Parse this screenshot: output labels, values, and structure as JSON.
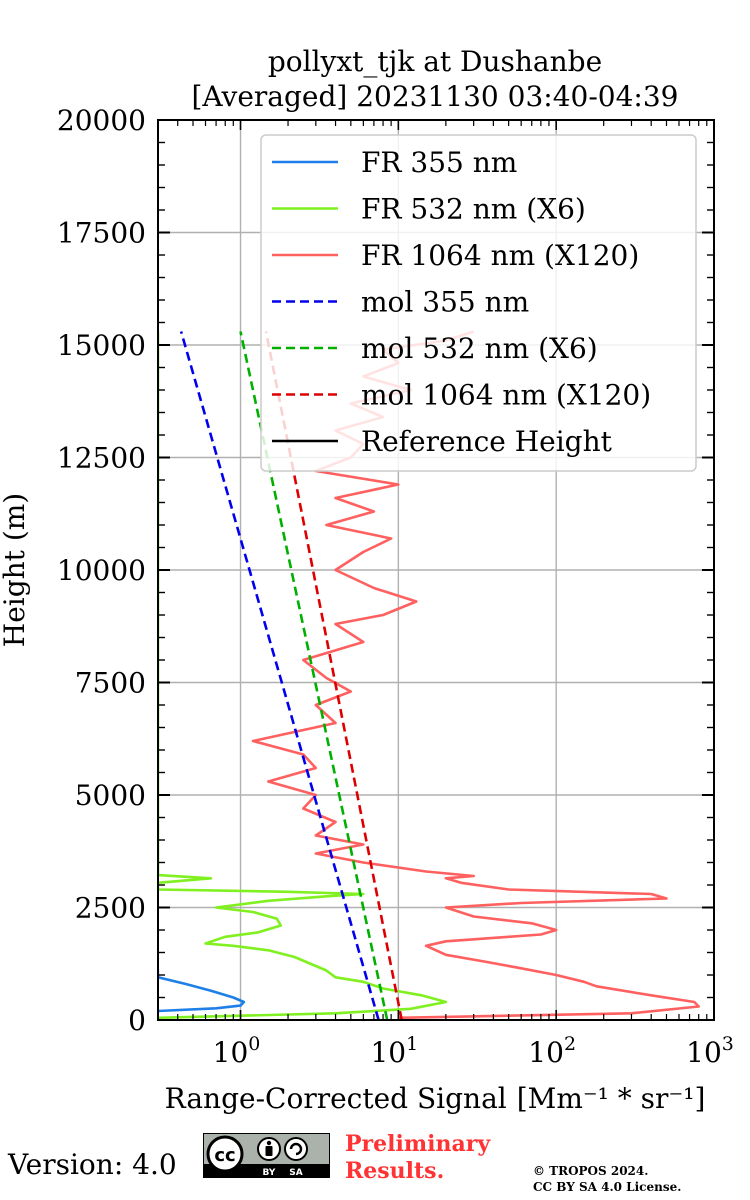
{
  "chart_data": {
    "type": "line",
    "title_line1": "pollyxt_tjk at Dushanbe",
    "title_line2": "[Averaged] 20231130 03:40-04:39",
    "xlabel": "Range-Corrected Signal",
    "xlabel_unit": "[Mm⁻¹ * sr⁻¹]",
    "ylabel": "Height (m)",
    "x_scale": "log",
    "xlim": [
      0.3,
      1000
    ],
    "ylim": [
      0,
      20000
    ],
    "grid": true,
    "legend_position": "top-right",
    "x_tick_bases": [
      "10",
      "10",
      "10",
      "10"
    ],
    "x_tick_exponents": [
      "0",
      "1",
      "2",
      "3"
    ],
    "x_tick_values": [
      1,
      10,
      100,
      1000
    ],
    "y_ticks": [
      0,
      2500,
      5000,
      7500,
      10000,
      12500,
      15000,
      17500,
      20000
    ],
    "y_tick_labels": [
      "0",
      "2500",
      "5000",
      "7500",
      "10000",
      "12500",
      "15000",
      "17500",
      "20000"
    ],
    "series": [
      {
        "name": "FR 355 nm",
        "color": "#1f7fe8",
        "dash": "solid",
        "points": [
          [
            0.3,
            200
          ],
          [
            0.7,
            260
          ],
          [
            1.0,
            320
          ],
          [
            1.05,
            400
          ],
          [
            0.9,
            500
          ],
          [
            0.65,
            650
          ],
          [
            0.45,
            800
          ],
          [
            0.3,
            950
          ],
          [
            0.29,
            2700
          ]
        ]
      },
      {
        "name": "FR 532 nm (X6)",
        "color": "#80f020",
        "dash": "solid",
        "points": [
          [
            0.3,
            50
          ],
          [
            4,
            150
          ],
          [
            12,
            250
          ],
          [
            20,
            400
          ],
          [
            14,
            550
          ],
          [
            8,
            700
          ],
          [
            6,
            850
          ],
          [
            4,
            950
          ],
          [
            3.5,
            1100
          ],
          [
            3,
            1200
          ],
          [
            2.2,
            1400
          ],
          [
            1.5,
            1550
          ],
          [
            0.9,
            1650
          ],
          [
            0.6,
            1700
          ],
          [
            0.8,
            1850
          ],
          [
            1.3,
            1950
          ],
          [
            1.8,
            2100
          ],
          [
            1.7,
            2250
          ],
          [
            1.2,
            2400
          ],
          [
            0.7,
            2500
          ],
          [
            1.5,
            2650
          ],
          [
            3.5,
            2750
          ],
          [
            6,
            2800
          ],
          [
            2,
            2850
          ],
          [
            0.3,
            2900
          ],
          [
            0.3,
            3050
          ],
          [
            0.65,
            3150
          ],
          [
            0.3,
            3220
          ],
          [
            0.3,
            15250
          ],
          [
            0.3,
            15300
          ]
        ]
      },
      {
        "name": "FR 1064 nm (X120)",
        "color": "#ff6060",
        "dash": "solid",
        "points": [
          [
            10,
            50
          ],
          [
            300,
            150
          ],
          [
            800,
            300
          ],
          [
            750,
            400
          ],
          [
            400,
            550
          ],
          [
            180,
            750
          ],
          [
            150,
            850
          ],
          [
            100,
            1000
          ],
          [
            60,
            1150
          ],
          [
            35,
            1300
          ],
          [
            20,
            1450
          ],
          [
            15,
            1650
          ],
          [
            20,
            1750
          ],
          [
            50,
            1850
          ],
          [
            80,
            1900
          ],
          [
            100,
            2000
          ],
          [
            70,
            2150
          ],
          [
            30,
            2300
          ],
          [
            20,
            2500
          ],
          [
            60,
            2600
          ],
          [
            500,
            2700
          ],
          [
            400,
            2800
          ],
          [
            50,
            2900
          ],
          [
            25,
            3050
          ],
          [
            20,
            3150
          ],
          [
            30,
            3200
          ],
          [
            15,
            3300
          ],
          [
            6,
            3500
          ],
          [
            3,
            3700
          ],
          [
            6,
            3900
          ],
          [
            3,
            4100
          ],
          [
            4,
            4400
          ],
          [
            2.5,
            4700
          ],
          [
            3,
            5000
          ],
          [
            1.5,
            5300
          ],
          [
            3,
            5600
          ],
          [
            2.5,
            5900
          ],
          [
            1.2,
            6200
          ],
          [
            4,
            6600
          ],
          [
            3,
            7000
          ],
          [
            5,
            7300
          ],
          [
            3.5,
            7600
          ],
          [
            2.5,
            8000
          ],
          [
            6,
            8400
          ],
          [
            4,
            8800
          ],
          [
            8,
            9000
          ],
          [
            13,
            9300
          ],
          [
            7,
            9600
          ],
          [
            4,
            10000
          ],
          [
            6,
            10400
          ],
          [
            9,
            10700
          ],
          [
            3.5,
            11000
          ],
          [
            7,
            11300
          ],
          [
            4,
            11600
          ],
          [
            10,
            11900
          ],
          [
            3,
            12200
          ],
          [
            5,
            12500
          ],
          [
            6,
            12800
          ],
          [
            4,
            13100
          ],
          [
            8,
            13400
          ],
          [
            5,
            13700
          ],
          [
            12,
            14000
          ],
          [
            6,
            14300
          ],
          [
            10,
            14600
          ],
          [
            8,
            14900
          ],
          [
            20,
            15100
          ],
          [
            30,
            15300
          ]
        ]
      },
      {
        "name": "mol 355 nm",
        "color": "#0000ee",
        "dash": "dashed",
        "points": [
          [
            7.5,
            0
          ],
          [
            0.42,
            15300
          ]
        ]
      },
      {
        "name": "mol 532 nm (X6)",
        "color": "#00b000",
        "dash": "dashed",
        "points": [
          [
            8.5,
            0
          ],
          [
            1.0,
            15300
          ]
        ]
      },
      {
        "name": "mol 1064 nm (X120)",
        "color": "#dd0000",
        "dash": "dashed",
        "points": [
          [
            10.5,
            0
          ],
          [
            1.45,
            15300
          ]
        ]
      },
      {
        "name": "Reference Height",
        "color": "#000000",
        "dash": "solid",
        "points": []
      }
    ]
  },
  "footer": {
    "version_text": "Version: 4.0",
    "preliminary_line1": "Preliminary",
    "preliminary_line2": "Results.",
    "copyright_line1": "© TROPOS 2024.",
    "copyright_line2": "CC BY SA 4.0 License."
  },
  "badge": {
    "by": "BY",
    "sa": "SA",
    "cc": "cc"
  }
}
